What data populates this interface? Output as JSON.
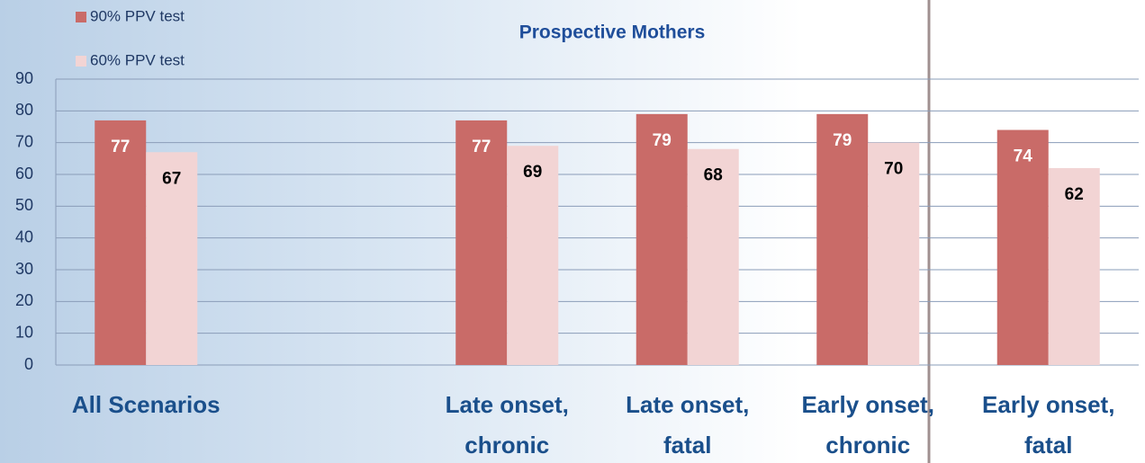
{
  "chart_data": {
    "type": "bar",
    "title": "Prospective Mothers",
    "categories": [
      "All Scenarios",
      null,
      "Late onset, chronic",
      "Late onset, fatal",
      "Early onset, chronic",
      "Early onset, fatal"
    ],
    "series": [
      {
        "name": "90% PPV test",
        "color": "#c96b68",
        "values": [
          77,
          null,
          77,
          79,
          79,
          74
        ]
      },
      {
        "name": "60% PPV test",
        "color": "#f2d4d4",
        "values": [
          67,
          null,
          69,
          68,
          70,
          62
        ]
      }
    ],
    "ylim": [
      0,
      90
    ],
    "yticks": [
      0,
      10,
      20,
      30,
      40,
      50,
      60,
      70,
      80,
      90
    ],
    "grid": true
  }
}
